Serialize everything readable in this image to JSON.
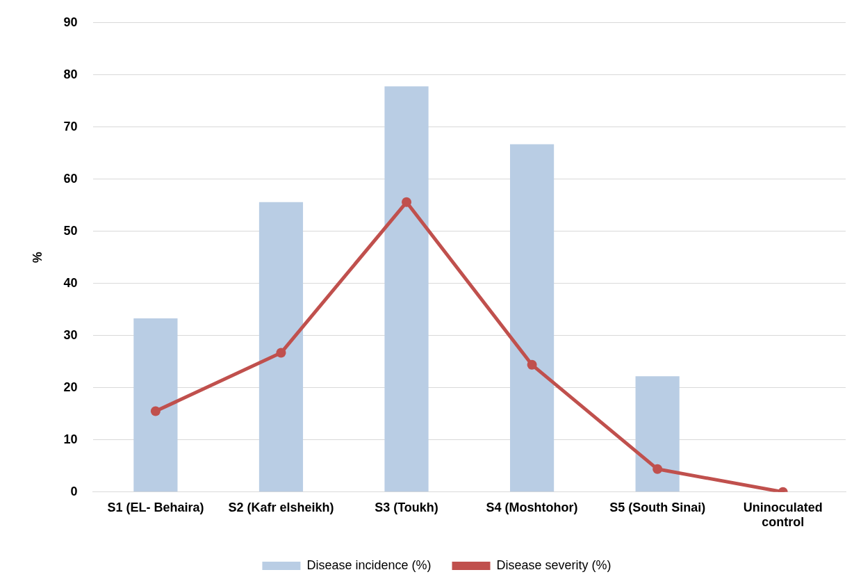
{
  "chart_data": {
    "type": "bar",
    "ylabel": "%",
    "categories": [
      "S1 (EL- Behaira)",
      "S2 (Kafr elsheikh)",
      "S3 (Toukh)",
      "S4 (Moshtohor)",
      "S5 (South Sinai)",
      "Uninoculated control"
    ],
    "series": [
      {
        "name": "Disease incidence (%)",
        "color": "#b9cde4",
        "values": [
          33.3,
          55.6,
          77.8,
          66.7,
          22.2,
          0
        ]
      },
      {
        "name": "Disease severity (%)",
        "type": "line",
        "color": "#c0504d",
        "values": [
          15.5,
          26.7,
          55.6,
          24.4,
          4.4,
          0
        ]
      }
    ],
    "ylim": [
      0,
      90
    ],
    "yticks": [
      0,
      10,
      20,
      30,
      40,
      50,
      60,
      70,
      80,
      90
    ],
    "grid": "y",
    "legend": "bottom",
    "marker": "circle",
    "line_style": "solid"
  }
}
